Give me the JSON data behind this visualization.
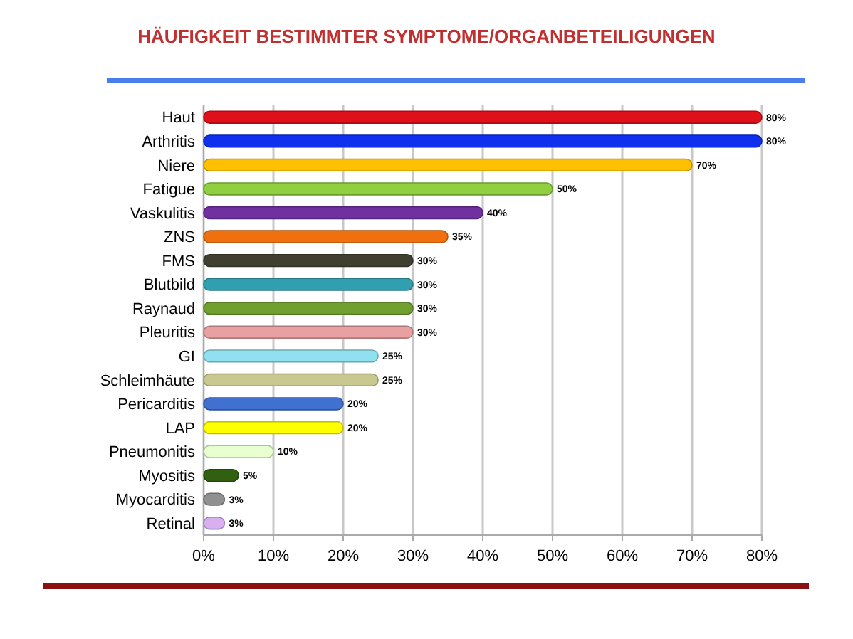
{
  "chart_data": {
    "type": "bar",
    "orientation": "horizontal",
    "title": "HÄUFIGKEIT BESTIMMTER SYMPTOME/ORGANBETEILIGUNGEN",
    "categories": [
      "Haut",
      "Arthritis",
      "Niere",
      "Fatigue",
      "Vaskulitis",
      "ZNS",
      "FMS",
      "Blutbild",
      "Raynaud",
      "Pleuritis",
      "GI",
      "Schleimhäute",
      "Pericarditis",
      "LAP",
      "Pneumonitis",
      "Myositis",
      "Myocarditis",
      "Retinal"
    ],
    "values": [
      80,
      80,
      70,
      50,
      40,
      35,
      30,
      30,
      30,
      30,
      25,
      25,
      20,
      20,
      10,
      5,
      3,
      3
    ],
    "colors": [
      "#e0101a",
      "#1030f0",
      "#ffc000",
      "#90d040",
      "#7030a0",
      "#f07010",
      "#404030",
      "#30a0b0",
      "#70a030",
      "#e8a0a0",
      "#90e0f0",
      "#c8c890",
      "#4070d0",
      "#ffff00",
      "#e8ffd0",
      "#306010",
      "#909090",
      "#d8b0f0"
    ],
    "value_labels": [
      "80%",
      "80%",
      "70%",
      "50%",
      "40%",
      "35%",
      "30%",
      "30%",
      "30%",
      "30%",
      "25%",
      "25%",
      "20%",
      "20%",
      "10%",
      "5%",
      "3%",
      "3%"
    ],
    "xlim": [
      0,
      80
    ],
    "xticks": [
      {
        "value": 0,
        "label": "0%"
      },
      {
        "value": 10,
        "label": "10%"
      },
      {
        "value": 20,
        "label": "20%"
      },
      {
        "value": 30,
        "label": "30%"
      },
      {
        "value": 40,
        "label": "40%"
      },
      {
        "value": 50,
        "label": "50%"
      },
      {
        "value": 60,
        "label": "60%"
      },
      {
        "value": 70,
        "label": "70%"
      },
      {
        "value": 80,
        "label": "80%"
      }
    ],
    "grid": "x"
  }
}
